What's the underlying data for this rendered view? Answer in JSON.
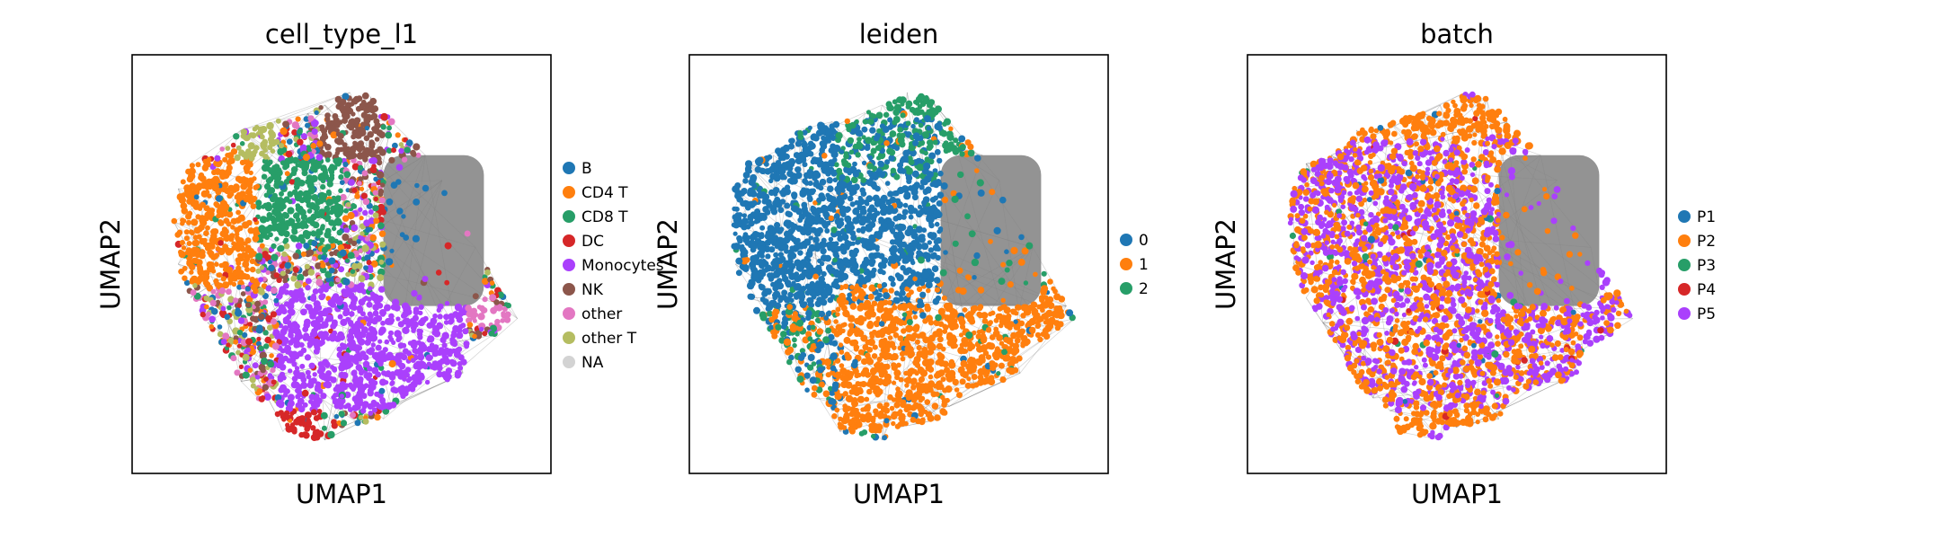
{
  "chart_data": [
    {
      "type": "scatter",
      "title": "cell_type_l1",
      "xlabel": "UMAP1",
      "ylabel": "UMAP2",
      "grid": false,
      "legend_placement": "right",
      "categories": [
        "B",
        "CD4 T",
        "CD8 T",
        "DC",
        "Monocytes",
        "NK",
        "other",
        "other T",
        "NA"
      ],
      "colors": [
        "#1f77b4",
        "#ff7f0e",
        "#279e68",
        "#d62728",
        "#aa40fc",
        "#8c564b",
        "#e377c2",
        "#b5bd61",
        "#d3d3d3"
      ],
      "edge_color": "#808080",
      "regions": [
        {
          "category": "CD4 T",
          "x": [
            0.1,
            0.3
          ],
          "y": [
            0.45,
            0.75
          ]
        },
        {
          "category": "CD8 T",
          "x": [
            0.3,
            0.5
          ],
          "y": [
            0.55,
            0.75
          ]
        },
        {
          "category": "other T",
          "x": [
            0.25,
            0.35
          ],
          "y": [
            0.75,
            0.85
          ]
        },
        {
          "category": "NK",
          "x": [
            0.45,
            0.6
          ],
          "y": [
            0.75,
            0.9
          ]
        },
        {
          "category": "B",
          "x": [
            0.6,
            0.75
          ],
          "y": [
            0.5,
            0.7
          ]
        },
        {
          "category": "Monocytes",
          "x": [
            0.35,
            0.8
          ],
          "y": [
            0.15,
            0.45
          ]
        },
        {
          "category": "DC",
          "x": [
            0.35,
            0.45
          ],
          "y": [
            0.05,
            0.15
          ]
        },
        {
          "category": "other",
          "x": [
            0.8,
            0.9
          ],
          "y": [
            0.35,
            0.4
          ]
        }
      ]
    },
    {
      "type": "scatter",
      "title": "leiden",
      "xlabel": "UMAP1",
      "ylabel": "UMAP2",
      "grid": false,
      "legend_placement": "right",
      "categories": [
        "0",
        "1",
        "2"
      ],
      "colors": [
        "#1f77b4",
        "#ff7f0e",
        "#279e68"
      ],
      "edge_color": "#808080",
      "regions": [
        {
          "category": "0",
          "x": [
            0.1,
            0.6
          ],
          "y": [
            0.4,
            0.85
          ]
        },
        {
          "category": "1",
          "x": [
            0.35,
            0.9
          ],
          "y": [
            0.1,
            0.45
          ]
        },
        {
          "category": "2",
          "x": [
            0.35,
            0.65
          ],
          "y": [
            0.7,
            0.9
          ]
        }
      ]
    },
    {
      "type": "scatter",
      "title": "batch",
      "xlabel": "UMAP1",
      "ylabel": "UMAP2",
      "grid": false,
      "legend_placement": "right",
      "categories": [
        "P1",
        "P2",
        "P3",
        "P4",
        "P5"
      ],
      "colors": [
        "#1f77b4",
        "#ff7f0e",
        "#279e68",
        "#d62728",
        "#aa40fc"
      ],
      "edge_color": "#808080",
      "regions": [
        {
          "category": "P2",
          "x": [
            0.1,
            0.8
          ],
          "y": [
            0.1,
            0.9
          ]
        },
        {
          "category": "P5",
          "x": [
            0.1,
            0.85
          ],
          "y": [
            0.15,
            0.8
          ]
        }
      ]
    }
  ]
}
